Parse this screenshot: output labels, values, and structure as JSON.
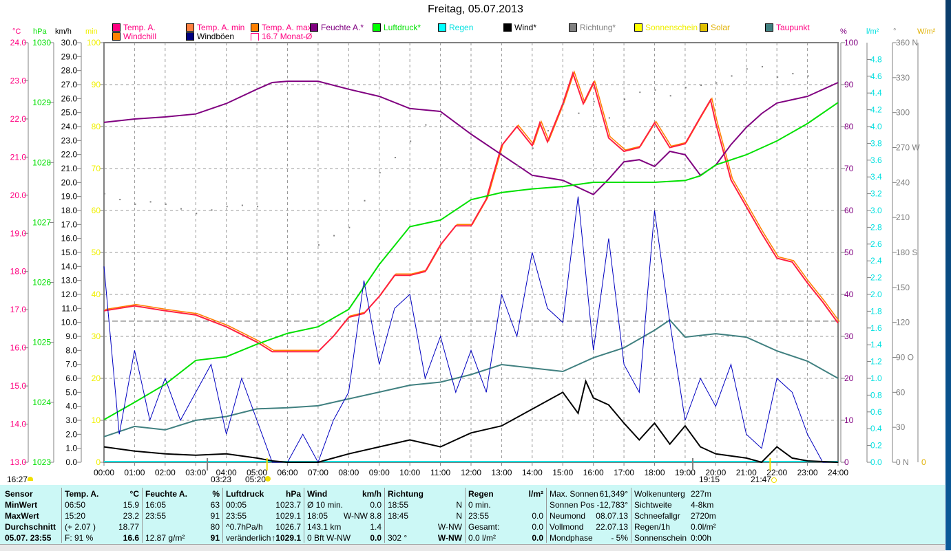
{
  "title": "Freitag, 05.07.2013",
  "legend": [
    {
      "label": "Temp. A.",
      "color": "#ff0080",
      "text_color": "#ff0080"
    },
    {
      "label": "Temp. A. min",
      "color": "#ff8040",
      "text_color": "#ff0080"
    },
    {
      "label": "Temp. A. max",
      "color": "#ff8000",
      "text_color": "#ff0080"
    },
    {
      "label": "Feuchte A.*",
      "color": "#800080",
      "text_color": "#800080"
    },
    {
      "label": "Luftdruck*",
      "color": "#00ff00",
      "text_color": "#00e000"
    },
    {
      "label": "Regen",
      "color": "#00ffff",
      "text_color": "#00e0e0"
    },
    {
      "label": "Wind*",
      "color": "#000000",
      "text_color": "#000000"
    },
    {
      "label": "Richtung*",
      "color": "#808080",
      "text_color": "#808080"
    },
    {
      "label": "Sonnenschein",
      "color": "#ffff00",
      "text_color": "#f0f000"
    },
    {
      "label": "Solar",
      "color": "#e0c000",
      "text_color": "#e0b000"
    },
    {
      "label": "Taupunkt",
      "color": "#408080",
      "text_color": "#ff0080"
    },
    {
      "label": "Windchill",
      "color": "#ff8000",
      "text_color": "#ff0080"
    },
    {
      "label": "Windböen",
      "color": "#000080",
      "text_color": "#000000"
    },
    {
      "label": "16.7 Monat-Ø",
      "color": "#ff0080",
      "text_color": "#ff0080"
    }
  ],
  "chart_data": {
    "type": "line",
    "x_range": [
      "00:00",
      "24:00"
    ],
    "x_ticks": [
      "00:00",
      "01:00",
      "02:00",
      "03:00",
      "04:00",
      "05:00",
      "06:00",
      "07:00",
      "08:00",
      "09:00",
      "10:00",
      "11:00",
      "12:00",
      "13:00",
      "14:00",
      "15:00",
      "16:00",
      "17:00",
      "18:00",
      "19:00",
      "20:00",
      "21:00",
      "22:00",
      "23:00",
      "24:00"
    ],
    "grid": true,
    "axes": {
      "temp": {
        "unit": "°C",
        "min": 13.0,
        "max": 24.0,
        "step": 1,
        "decimals": 1,
        "color": "#ff0080"
      },
      "pressure": {
        "unit": "hPa",
        "min": 1023,
        "max": 1030,
        "step": 1,
        "decimals": 0,
        "color": "#00e000"
      },
      "wind": {
        "unit": "km/h",
        "min": 0.0,
        "max": 30.0,
        "step": 1,
        "decimals": 1,
        "color": "#000000"
      },
      "sunshine": {
        "unit": "min",
        "min": 0,
        "max": 100,
        "step": 10,
        "decimals": 0,
        "color": "#f0f000"
      },
      "humidity": {
        "unit": "%",
        "min": 0,
        "max": 100,
        "step": 10,
        "decimals": 0,
        "color": "#800080"
      },
      "rain": {
        "unit": "l/m²",
        "min": 0.0,
        "max": 5.0,
        "step": 0.2,
        "label_max": 4.8,
        "decimals": 1,
        "color": "#00e0e0"
      },
      "direction": {
        "unit": "°",
        "min": 0,
        "max": 360,
        "step": 30,
        "labels": {
          "0": "0  N",
          "90": "90  O",
          "180": "180 S",
          "270": "270 W",
          "360": "360 N"
        },
        "color": "#808080"
      },
      "solar": {
        "unit": "W/m²",
        "min": 0,
        "label": "0",
        "color": "#e0b000"
      }
    },
    "month_average": {
      "value": 16.7,
      "axis": "temp"
    },
    "series": [
      {
        "name": "Temp. A.",
        "axis": "temp",
        "color": "#ff2040",
        "x": [
          0,
          1,
          2,
          3,
          4,
          5,
          5.5,
          6,
          7,
          7.5,
          8,
          8.5,
          9,
          9.5,
          10,
          10.5,
          11,
          11.5,
          12,
          12.5,
          13,
          13.5,
          14,
          14.25,
          14.5,
          15,
          15.33,
          15.67,
          16,
          16.5,
          17,
          17.5,
          18,
          18.5,
          19,
          19.5,
          19.83,
          20,
          20.5,
          21,
          21.5,
          22,
          22.5,
          23,
          23.5,
          24
        ],
        "y": [
          16.97,
          17.1,
          16.97,
          16.86,
          16.55,
          16.15,
          15.9,
          15.9,
          15.9,
          16.3,
          16.8,
          16.9,
          17.35,
          17.9,
          17.9,
          18.0,
          18.7,
          19.2,
          19.2,
          19.9,
          21.3,
          21.8,
          21.3,
          21.9,
          21.4,
          22.4,
          23.2,
          22.4,
          22.95,
          21.5,
          21.15,
          21.25,
          21.9,
          21.25,
          21.35,
          22.05,
          22.5,
          21.9,
          20.4,
          19.7,
          19.0,
          18.35,
          18.25,
          17.7,
          17.2,
          16.65
        ]
      },
      {
        "name": "Feuchte A.*",
        "axis": "humidity",
        "color": "#800080",
        "x": [
          0,
          1,
          2,
          3,
          4,
          5,
          5.5,
          6,
          7,
          8,
          9,
          10,
          11,
          12,
          13,
          14,
          15,
          16,
          16.5,
          17,
          17.5,
          18,
          18.5,
          19,
          19.5,
          20,
          20.5,
          21,
          21.5,
          22,
          23,
          24
        ],
        "y": [
          81,
          81.8,
          82.3,
          83,
          85.5,
          88.9,
          90.5,
          90.8,
          90.8,
          88.9,
          87.2,
          84.3,
          83.6,
          78.2,
          73.3,
          68.4,
          67.2,
          63.8,
          67.5,
          71.6,
          72.1,
          70.5,
          74.1,
          73.3,
          68.4,
          70.8,
          75.7,
          79.8,
          83.1,
          85.6,
          87.2,
          90.5
        ]
      },
      {
        "name": "Luftdruck*",
        "axis": "pressure",
        "color": "#00e000",
        "x": [
          0,
          1,
          2,
          3,
          4,
          5,
          6,
          7,
          8,
          9,
          10,
          11,
          12,
          13,
          14,
          15,
          16,
          17,
          18,
          19,
          19.5,
          20,
          21,
          22,
          23,
          24
        ],
        "y": [
          1023.71,
          1024.0,
          1024.3,
          1024.7,
          1024.76,
          1024.97,
          1025.15,
          1025.26,
          1025.55,
          1026.3,
          1026.93,
          1027.04,
          1027.38,
          1027.5,
          1027.56,
          1027.6,
          1027.67,
          1027.67,
          1027.67,
          1027.7,
          1027.78,
          1027.96,
          1028.13,
          1028.36,
          1028.65,
          1029.0
        ]
      },
      {
        "name": "Taupunkt",
        "axis": "temp",
        "color": "#408080",
        "x": [
          0,
          1,
          2,
          3,
          4,
          5,
          6,
          7,
          8,
          9,
          10,
          11,
          12,
          13,
          14,
          15,
          16,
          17,
          18,
          18.5,
          19,
          20,
          21,
          22,
          23,
          24
        ],
        "y": [
          13.67,
          13.94,
          13.85,
          14.1,
          14.2,
          14.4,
          14.43,
          14.48,
          14.66,
          14.84,
          15.02,
          15.1,
          15.3,
          15.56,
          15.47,
          15.38,
          15.74,
          16.0,
          16.46,
          16.73,
          16.28,
          16.37,
          16.28,
          15.92,
          15.65,
          15.2
        ]
      },
      {
        "name": "Windböen",
        "axis": "wind",
        "color": "#0000c0",
        "x": [
          0,
          0.5,
          1,
          1.5,
          2,
          2.5,
          3,
          3.5,
          4,
          4.5,
          5,
          5.5,
          6,
          6.5,
          7,
          7.5,
          8,
          8.5,
          9,
          9.5,
          10,
          10.5,
          11,
          11.5,
          12,
          12.5,
          13,
          13.5,
          14,
          14.5,
          15,
          15.5,
          16,
          16.5,
          17,
          17.5,
          18,
          18.5,
          19,
          19.5,
          20,
          20.5,
          21,
          21.5,
          22,
          22.5,
          23,
          23.5,
          24
        ],
        "y": [
          14,
          2,
          8,
          3,
          6,
          3,
          5,
          7,
          2,
          6,
          3,
          0,
          0,
          2,
          0,
          3,
          5,
          13,
          7,
          11,
          12,
          6,
          9,
          5,
          8,
          5,
          12,
          9,
          15,
          11,
          10,
          19,
          8,
          16,
          7,
          5,
          18,
          10,
          3,
          6,
          4,
          7,
          2,
          1,
          6,
          5,
          2,
          0,
          0
        ]
      },
      {
        "name": "Wind*",
        "axis": "wind",
        "color": "#000000",
        "x": [
          0,
          1,
          2,
          3,
          4,
          5,
          5.5,
          6,
          7,
          7.5,
          8,
          9,
          10,
          11,
          12,
          13,
          14,
          15,
          15.5,
          15.75,
          16,
          16.5,
          17,
          17.5,
          18,
          18.5,
          19,
          19.5,
          20,
          21,
          21.5,
          22,
          22.5,
          23,
          24
        ],
        "y": [
          1.1,
          0.8,
          0.6,
          0.5,
          0.6,
          0.3,
          0.1,
          0,
          0,
          0.3,
          0.6,
          1.1,
          1.6,
          1.1,
          2.1,
          2.6,
          3.8,
          5.0,
          3.5,
          5.8,
          4.6,
          4.1,
          2.8,
          1.6,
          2.8,
          1.3,
          2.6,
          1.1,
          0.6,
          0.3,
          0,
          1.1,
          0.3,
          0.1,
          0
        ]
      },
      {
        "name": "Richtung*",
        "axis": "direction",
        "color": "#808080",
        "style": "dots",
        "x": [
          0,
          0.5,
          1,
          1.5,
          2,
          2.5,
          3,
          3.5,
          4,
          4.5,
          5,
          7,
          7.5,
          8,
          8.5,
          9,
          9.5,
          10,
          10.5,
          11,
          13.5,
          14,
          14.5,
          15,
          15.5,
          16,
          16.5,
          17,
          17.5,
          18,
          18.5,
          19,
          19.5,
          20,
          20.5,
          21,
          21.5,
          22,
          22.5,
          23
        ],
        "y": [
          231,
          226,
          222,
          224,
          222,
          218,
          214,
          217,
          220,
          221,
          220,
          187,
          195,
          202,
          225,
          249,
          262,
          276,
          290,
          299,
          255,
          270,
          285,
          308,
          300,
          310,
          296,
          312,
          318,
          320,
          315,
          322,
          324,
          326,
          332,
          338,
          340,
          331,
          334,
          332
        ]
      }
    ],
    "sun_events": [
      {
        "label": "16:27",
        "icon": "sun-icon"
      },
      {
        "label": "03:23",
        "icon": "dawn-arrow-icon"
      },
      {
        "label": "05:20",
        "icon": "sunrise-icon"
      },
      {
        "label": "19:15",
        "icon": "dusk-arrow-icon"
      },
      {
        "label": "21:47",
        "icon": "sunset-icon"
      }
    ]
  },
  "table": {
    "columns": [
      {
        "rows": [
          [
            "Sensor",
            ""
          ],
          [
            "MinWert",
            ""
          ],
          [
            "MaxWert",
            ""
          ],
          [
            "Durchschnitt",
            ""
          ],
          [
            "05.07. 23:55",
            ""
          ]
        ]
      },
      {
        "rows": [
          [
            "Temp. A.",
            "°C"
          ],
          [
            "06:50",
            "15.9"
          ],
          [
            "15:20",
            "23.2"
          ],
          [
            "(+ 2.07 )",
            "18.77"
          ],
          [
            "F: 91 %",
            "16.6"
          ]
        ]
      },
      {
        "rows": [
          [
            "Feuchte A.",
            "%"
          ],
          [
            "16:05",
            "63"
          ],
          [
            "23:55",
            "91"
          ],
          [
            "",
            "80"
          ],
          [
            "12.87 g/m²",
            "91"
          ]
        ]
      },
      {
        "rows": [
          [
            "Luftdruck",
            "hPa"
          ],
          [
            "00:05",
            "1023.7"
          ],
          [
            "23:55",
            "1029.1"
          ],
          [
            "^0.7hPa/h",
            "1026.7"
          ],
          [
            "veränderlich",
            "↑1029.1"
          ]
        ]
      },
      {
        "rows": [
          [
            "Wind",
            "km/h"
          ],
          [
            "Ø 10 min.",
            "0.0"
          ],
          [
            "18:05",
            "W-NW 8.8"
          ],
          [
            "143.1 km",
            "1.4"
          ],
          [
            "0 Bft W-NW",
            "0.0"
          ]
        ]
      },
      {
        "rows": [
          [
            "Richtung",
            ""
          ],
          [
            "18:55",
            "N"
          ],
          [
            "18:45",
            "N"
          ],
          [
            "",
            "W-NW"
          ],
          [
            "302 °",
            "W-NW"
          ]
        ]
      },
      {
        "rows": [
          [
            "Regen",
            "l/m²"
          ],
          [
            "0 min.",
            ""
          ],
          [
            "23:55",
            "0.0"
          ],
          [
            "Gesamt:",
            "0.0"
          ],
          [
            "0.0 l/m²",
            "0.0"
          ]
        ]
      },
      {
        "rows": [
          [
            "Max. Sonnen",
            "61,349°"
          ],
          [
            "Sonnen Pos",
            "-12,783°"
          ],
          [
            "Neumond",
            "08.07.13"
          ],
          [
            "Vollmond",
            "22.07.13"
          ],
          [
            "Mondphase",
            "- 5%"
          ]
        ]
      },
      {
        "rows": [
          [
            "Wolkenunterg",
            "227m"
          ],
          [
            "Sichtweite",
            "4-8km"
          ],
          [
            "Schneefallgr",
            "2720m"
          ],
          [
            "Regen/1h",
            "0.0l/m²"
          ],
          [
            "Sonnenschein",
            "0:00h"
          ]
        ]
      }
    ]
  }
}
